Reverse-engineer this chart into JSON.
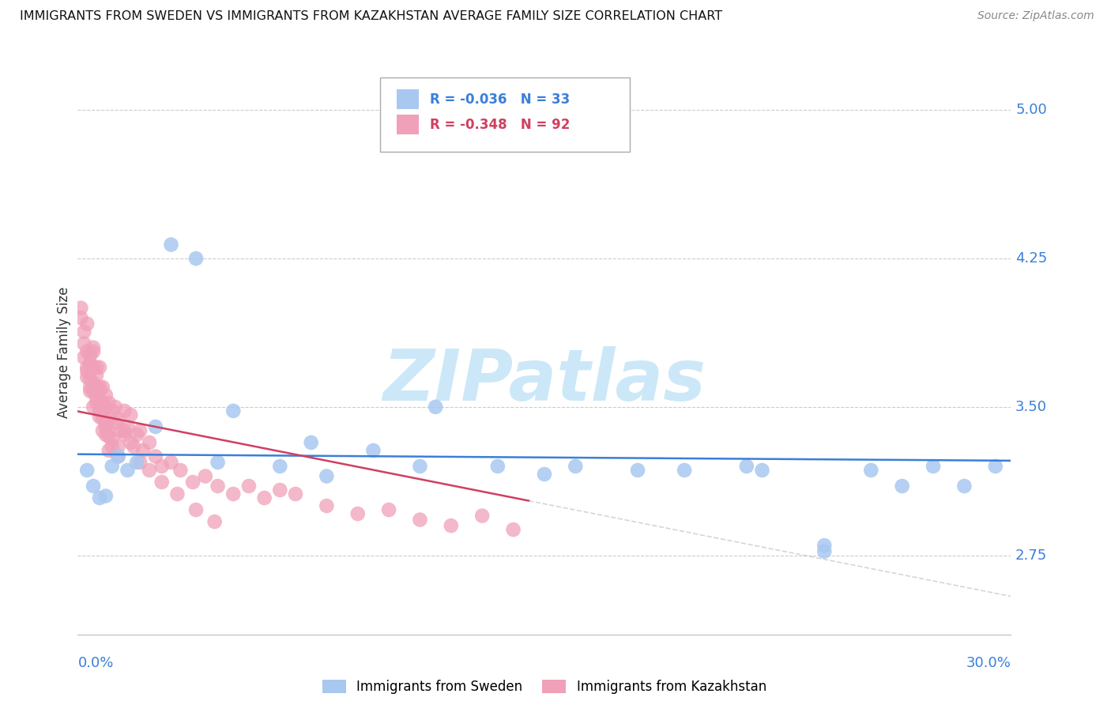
{
  "title": "IMMIGRANTS FROM SWEDEN VS IMMIGRANTS FROM KAZAKHSTAN AVERAGE FAMILY SIZE CORRELATION CHART",
  "source": "Source: ZipAtlas.com",
  "ylabel": "Average Family Size",
  "ytick_vals": [
    2.75,
    3.5,
    4.25,
    5.0
  ],
  "ytick_labels": [
    "2.75",
    "3.50",
    "4.25",
    "5.00"
  ],
  "xlim": [
    0.0,
    0.3
  ],
  "ylim": [
    2.35,
    5.2
  ],
  "legend_sweden": "R = -0.036   N = 33",
  "legend_kazakhstan": "R = -0.348   N = 92",
  "color_sweden": "#a8c8f0",
  "color_kazakhstan": "#f0a0b8",
  "line_sweden": "#3a7fd9",
  "line_kazakhstan": "#d04060",
  "watermark_text": "ZIPatlas",
  "watermark_color": "#cce8f8",
  "background": "#ffffff",
  "grid_color": "#cccccc",
  "title_color": "#111111",
  "source_color": "#888888",
  "ylabel_color": "#333333",
  "tick_label_color": "#3a7fd9",
  "sweden_x": [
    0.003,
    0.005,
    0.007,
    0.009,
    0.011,
    0.013,
    0.016,
    0.019,
    0.025,
    0.03,
    0.038,
    0.05,
    0.065,
    0.08,
    0.095,
    0.115,
    0.135,
    0.16,
    0.195,
    0.215,
    0.24,
    0.255,
    0.265,
    0.275,
    0.285,
    0.295,
    0.24,
    0.22,
    0.18,
    0.15,
    0.11,
    0.075,
    0.045
  ],
  "sweden_y": [
    3.18,
    3.1,
    3.04,
    3.05,
    3.2,
    3.25,
    3.18,
    3.22,
    3.4,
    4.32,
    4.25,
    3.48,
    3.2,
    3.15,
    3.28,
    3.5,
    3.2,
    3.2,
    3.18,
    3.2,
    2.8,
    3.18,
    3.1,
    3.2,
    3.1,
    3.2,
    2.77,
    3.18,
    3.18,
    3.16,
    3.2,
    3.32,
    3.22
  ],
  "kaz_x": [
    0.001,
    0.001,
    0.002,
    0.002,
    0.002,
    0.003,
    0.003,
    0.003,
    0.003,
    0.004,
    0.004,
    0.004,
    0.004,
    0.005,
    0.005,
    0.005,
    0.005,
    0.005,
    0.006,
    0.006,
    0.006,
    0.006,
    0.007,
    0.007,
    0.007,
    0.007,
    0.007,
    0.008,
    0.008,
    0.008,
    0.008,
    0.009,
    0.009,
    0.009,
    0.009,
    0.01,
    0.01,
    0.01,
    0.01,
    0.011,
    0.011,
    0.012,
    0.012,
    0.013,
    0.013,
    0.014,
    0.015,
    0.015,
    0.016,
    0.017,
    0.018,
    0.019,
    0.02,
    0.021,
    0.023,
    0.025,
    0.027,
    0.03,
    0.033,
    0.037,
    0.041,
    0.045,
    0.05,
    0.055,
    0.06,
    0.065,
    0.07,
    0.08,
    0.09,
    0.1,
    0.11,
    0.12,
    0.13,
    0.14,
    0.003,
    0.004,
    0.005,
    0.006,
    0.007,
    0.008,
    0.009,
    0.01,
    0.011,
    0.013,
    0.015,
    0.017,
    0.02,
    0.023,
    0.027,
    0.032,
    0.038,
    0.044
  ],
  "kaz_y": [
    3.95,
    4.0,
    3.82,
    3.88,
    3.75,
    3.92,
    3.7,
    3.68,
    3.78,
    3.76,
    3.64,
    3.72,
    3.6,
    3.78,
    3.7,
    3.58,
    3.5,
    3.8,
    3.66,
    3.6,
    3.52,
    3.7,
    3.58,
    3.52,
    3.6,
    3.45,
    3.7,
    3.6,
    3.46,
    3.52,
    3.38,
    3.56,
    3.5,
    3.42,
    3.36,
    3.52,
    3.44,
    3.38,
    3.28,
    3.48,
    3.34,
    3.5,
    3.42,
    3.44,
    3.3,
    3.38,
    3.48,
    3.36,
    3.4,
    3.46,
    3.3,
    3.36,
    3.38,
    3.28,
    3.32,
    3.25,
    3.2,
    3.22,
    3.18,
    3.12,
    3.15,
    3.1,
    3.06,
    3.1,
    3.04,
    3.08,
    3.06,
    3.0,
    2.96,
    2.98,
    2.93,
    2.9,
    2.95,
    2.88,
    3.65,
    3.58,
    3.62,
    3.55,
    3.48,
    3.44,
    3.4,
    3.35,
    3.3,
    3.25,
    3.38,
    3.32,
    3.22,
    3.18,
    3.12,
    3.06,
    2.98,
    2.92
  ]
}
